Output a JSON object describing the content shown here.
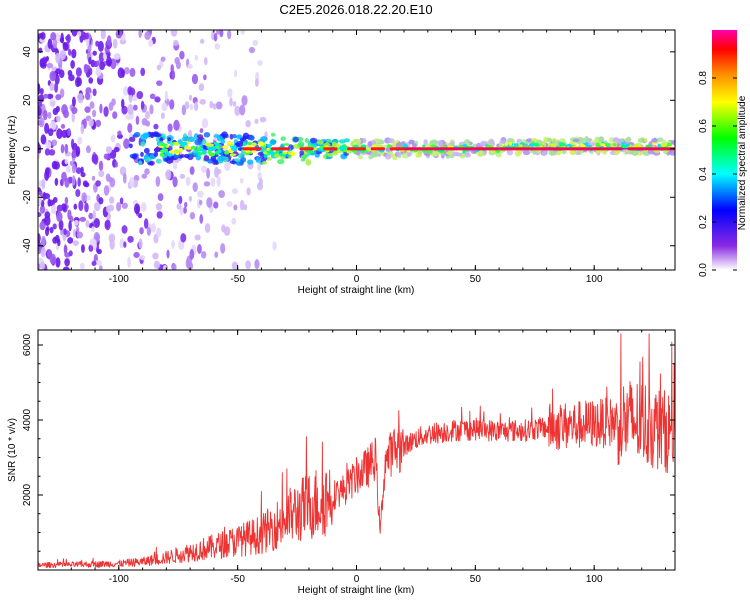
{
  "title": "C2E5.2026.018.22.20.E10",
  "chart_data": [
    {
      "type": "heatmap",
      "xlabel": "Height of straight line (km)",
      "ylabel": "Frequency (Hz)",
      "xlim": [
        -134,
        134
      ],
      "ylim": [
        -50,
        49
      ],
      "xticks": [
        -100,
        -50,
        0,
        50,
        100
      ],
      "yticks": [
        -40,
        -20,
        0,
        20,
        40
      ],
      "colorbar": {
        "label": "Normalized spectral amplitude",
        "range": [
          0,
          1
        ],
        "ticks": [
          "0.0",
          "0.2",
          "0.4",
          "0.6",
          "0.8"
        ],
        "tick_values": [
          0.0,
          0.2,
          0.4,
          0.6,
          0.8
        ],
        "colors": [
          "#ffffff",
          "#8a2be2",
          "#0000ff",
          "#00ffff",
          "#00ff00",
          "#ffff00",
          "#ff8800",
          "#ff0000",
          "#ff00aa"
        ]
      },
      "features": {
        "ridge_frequency": 0,
        "ridge_start_km": -95,
        "noise_region_km": [
          -134,
          -45
        ],
        "noise_freq_range": [
          -50,
          49
        ]
      }
    },
    {
      "type": "line",
      "xlabel": "Height of straight line (km)",
      "ylabel": "SNR (10 * v/v)",
      "xlim": [
        -134,
        134
      ],
      "ylim": [
        0,
        6400
      ],
      "xticks": [
        -100,
        -50,
        0,
        50,
        100
      ],
      "yticks": [
        2000,
        4000,
        6000
      ],
      "color": "#ee3333",
      "envelope": {
        "x": [
          -134,
          -120,
          -100,
          -90,
          -80,
          -70,
          -60,
          -50,
          -40,
          -35,
          -30,
          -25,
          -20,
          -15,
          -10,
          -5,
          0,
          5,
          8,
          10,
          12,
          15,
          20,
          25,
          30,
          40,
          50,
          60,
          70,
          80,
          90,
          100,
          110,
          120,
          125,
          130,
          134
        ],
        "y": [
          130,
          140,
          170,
          220,
          330,
          480,
          620,
          780,
          950,
          1150,
          1350,
          1550,
          1700,
          1850,
          2000,
          2150,
          2500,
          2750,
          3000,
          1000,
          2900,
          3150,
          3300,
          3500,
          3620,
          3720,
          3760,
          3700,
          3720,
          3800,
          3850,
          3900,
          3950,
          3950,
          3800,
          3700,
          3700
        ]
      }
    }
  ]
}
